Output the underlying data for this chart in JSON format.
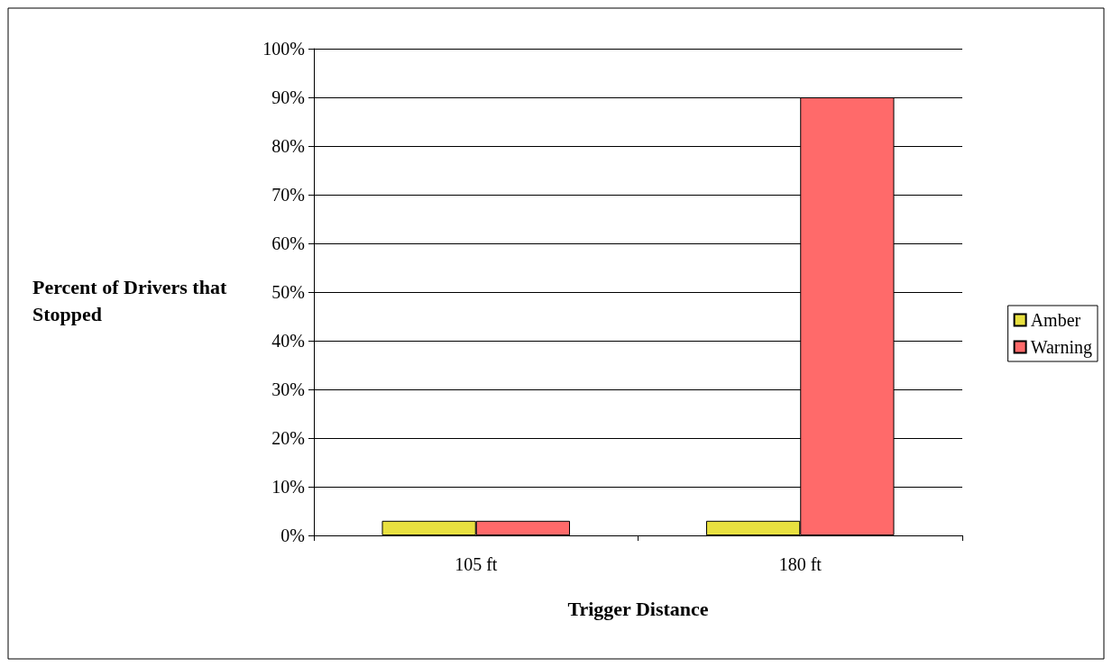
{
  "chart_data": {
    "type": "bar",
    "xlabel": "Trigger Distance",
    "ylabel": "Percent of Drivers that Stopped",
    "categories": [
      "105 ft",
      "180 ft"
    ],
    "series": [
      {
        "name": "Amber",
        "color": "#e8e040",
        "values": [
          3,
          3
        ]
      },
      {
        "name": "Warning",
        "color": "#ff6a6a",
        "values": [
          3,
          90
        ]
      }
    ],
    "ylim": [
      0,
      100
    ],
    "yticks": [
      {
        "value": 0,
        "label": "0%"
      },
      {
        "value": 10,
        "label": "10%"
      },
      {
        "value": 20,
        "label": "20%"
      },
      {
        "value": 30,
        "label": "30%"
      },
      {
        "value": 40,
        "label": "40%"
      },
      {
        "value": 50,
        "label": "50%"
      },
      {
        "value": 60,
        "label": "60%"
      },
      {
        "value": 70,
        "label": "70%"
      },
      {
        "value": 80,
        "label": "80%"
      },
      {
        "value": 90,
        "label": "90%"
      },
      {
        "value": 100,
        "label": "100%"
      }
    ],
    "grid": "y",
    "legend": "right"
  }
}
